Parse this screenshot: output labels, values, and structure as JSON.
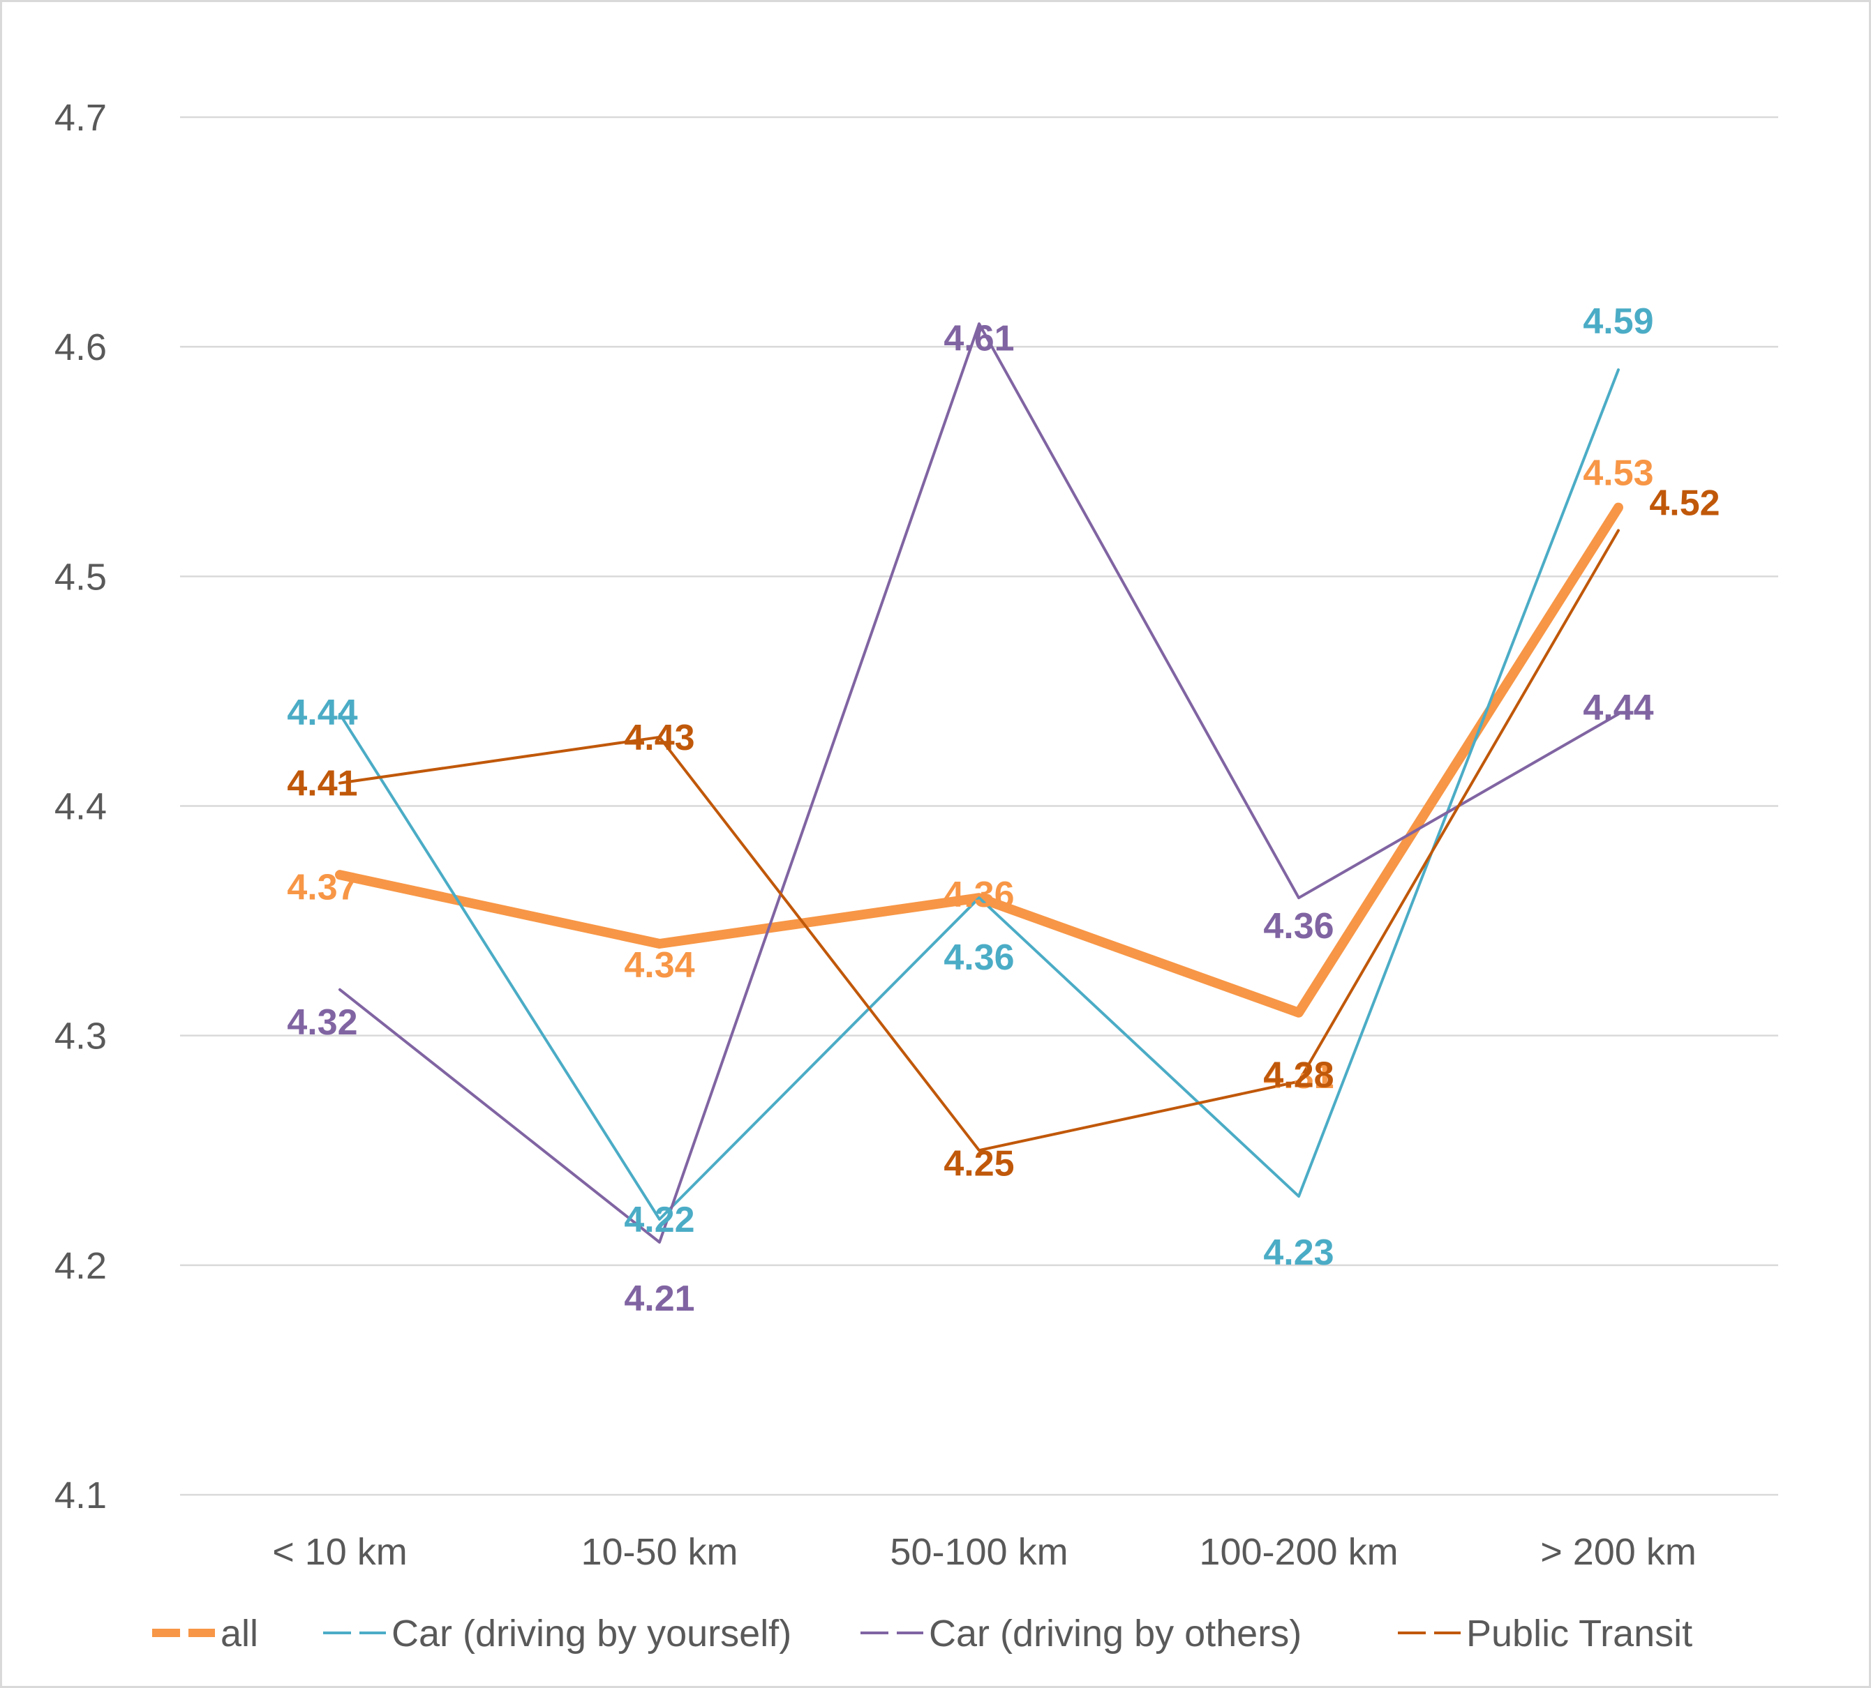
{
  "chart_data": {
    "type": "line",
    "title": "",
    "xlabel": "",
    "ylabel": "",
    "categories": [
      "< 10 km",
      "10-50 km",
      "50-100 km",
      "100-200 km",
      "> 200 km"
    ],
    "ylim": [
      4.1,
      4.7
    ],
    "yticks": [
      "4.1",
      "4.2",
      "4.3",
      "4.4",
      "4.5",
      "4.6",
      "4.7"
    ],
    "grid": "horizontal",
    "legend_position": "bottom",
    "series": [
      {
        "name": "all",
        "color": "#f79646",
        "values": [
          4.37,
          4.34,
          4.36,
          4.31,
          4.53
        ],
        "labels": [
          "4.37",
          "4.34",
          "4.36",
          "4.31",
          "4.53"
        ]
      },
      {
        "name": "Car (driving by yourself)",
        "color": "#4bacc6",
        "values": [
          4.44,
          4.22,
          4.36,
          4.23,
          4.59
        ],
        "labels": [
          "4.44",
          "4.22",
          "4.36",
          "4.23",
          "4.59"
        ]
      },
      {
        "name": "Car (driving by others)",
        "color": "#8064a2",
        "values": [
          4.32,
          4.21,
          4.61,
          4.36,
          4.44
        ],
        "labels": [
          "4.32",
          "4.21",
          "4.61",
          "4.36",
          "4.44"
        ]
      },
      {
        "name": "Public Transit",
        "color": "#c0580a",
        "values": [
          4.41,
          4.43,
          4.25,
          4.28,
          4.52
        ],
        "labels": [
          "4.41",
          "4.43",
          "4.25",
          "4.28",
          "4.52"
        ]
      }
    ]
  }
}
